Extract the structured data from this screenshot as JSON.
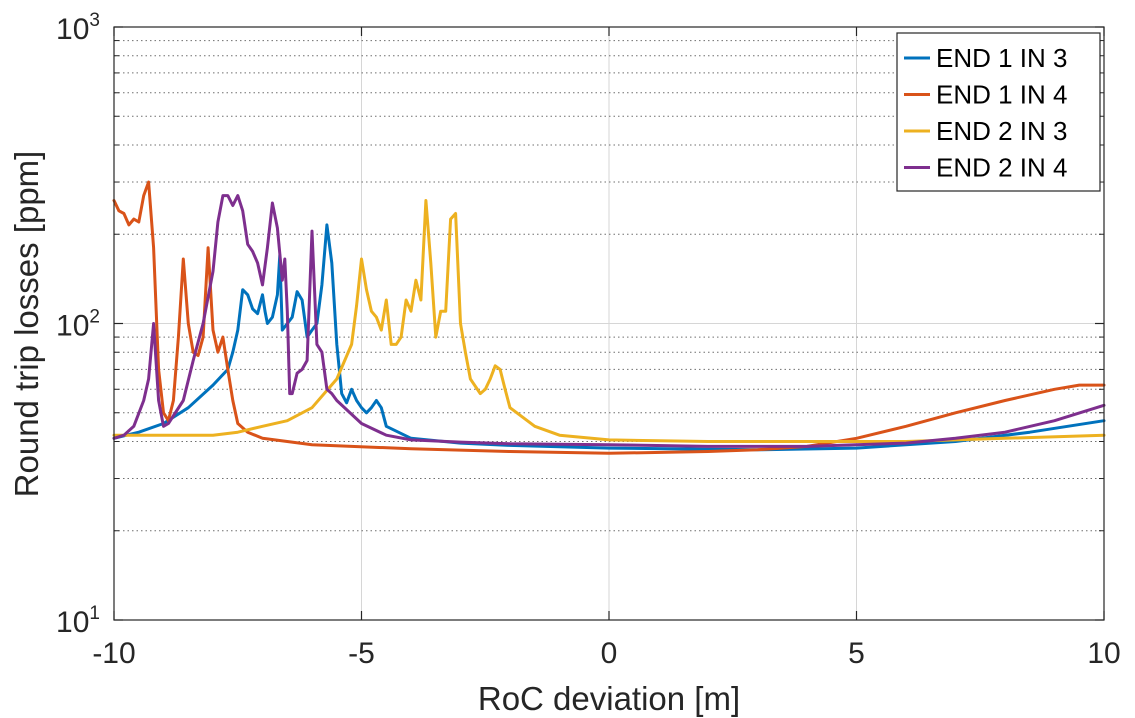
{
  "chart_data": {
    "type": "line",
    "title": "",
    "xlabel": "RoC deviation [m]",
    "ylabel": "Round trip losses [ppm]",
    "xlim": [
      -10,
      10
    ],
    "ylim": [
      10,
      1000
    ],
    "yscale": "log",
    "grid": true,
    "legend_position": "top-right",
    "x_ticks": [
      {
        "value": -10,
        "label": "-10"
      },
      {
        "value": -5,
        "label": "-5"
      },
      {
        "value": 0,
        "label": "0"
      },
      {
        "value": 5,
        "label": "5"
      },
      {
        "value": 10,
        "label": "10"
      }
    ],
    "y_ticks": [
      {
        "value": 10,
        "base": "10",
        "exp": "1"
      },
      {
        "value": 100,
        "base": "10",
        "exp": "2"
      },
      {
        "value": 1000,
        "base": "10",
        "exp": "3"
      }
    ],
    "series": [
      {
        "name": "END 1 IN 3",
        "color": "#0072BD",
        "points": [
          [
            -10,
            41
          ],
          [
            -9.5,
            43
          ],
          [
            -9,
            46
          ],
          [
            -8.5,
            52
          ],
          [
            -8,
            62
          ],
          [
            -7.7,
            70
          ],
          [
            -7.6,
            80
          ],
          [
            -7.5,
            95
          ],
          [
            -7.4,
            130
          ],
          [
            -7.3,
            125
          ],
          [
            -7.2,
            112
          ],
          [
            -7.1,
            108
          ],
          [
            -7.0,
            125
          ],
          [
            -6.95,
            110
          ],
          [
            -6.9,
            100
          ],
          [
            -6.8,
            105
          ],
          [
            -6.7,
            125
          ],
          [
            -6.65,
            170
          ],
          [
            -6.6,
            95
          ],
          [
            -6.5,
            100
          ],
          [
            -6.4,
            105
          ],
          [
            -6.3,
            128
          ],
          [
            -6.2,
            120
          ],
          [
            -6.1,
            90
          ],
          [
            -6.0,
            95
          ],
          [
            -5.9,
            100
          ],
          [
            -5.8,
            135
          ],
          [
            -5.7,
            215
          ],
          [
            -5.6,
            160
          ],
          [
            -5.5,
            85
          ],
          [
            -5.4,
            58
          ],
          [
            -5.3,
            54
          ],
          [
            -5.2,
            60
          ],
          [
            -5.1,
            55
          ],
          [
            -5.0,
            52
          ],
          [
            -4.9,
            50
          ],
          [
            -4.8,
            52
          ],
          [
            -4.7,
            55
          ],
          [
            -4.6,
            52
          ],
          [
            -4.5,
            45
          ],
          [
            -4.0,
            41
          ],
          [
            -3,
            39.5
          ],
          [
            -2,
            38.8
          ],
          [
            0,
            38
          ],
          [
            3,
            37.5
          ],
          [
            5,
            38
          ],
          [
            7,
            40
          ],
          [
            8.5,
            43
          ],
          [
            10,
            47
          ]
        ]
      },
      {
        "name": "END 1 IN 4",
        "color": "#D95319",
        "points": [
          [
            -10,
            260
          ],
          [
            -9.9,
            240
          ],
          [
            -9.8,
            235
          ],
          [
            -9.7,
            215
          ],
          [
            -9.6,
            225
          ],
          [
            -9.5,
            220
          ],
          [
            -9.4,
            270
          ],
          [
            -9.3,
            300
          ],
          [
            -9.2,
            180
          ],
          [
            -9.1,
            70
          ],
          [
            -9.0,
            50
          ],
          [
            -8.9,
            47
          ],
          [
            -8.8,
            55
          ],
          [
            -8.7,
            90
          ],
          [
            -8.6,
            165
          ],
          [
            -8.5,
            100
          ],
          [
            -8.4,
            80
          ],
          [
            -8.3,
            78
          ],
          [
            -8.2,
            90
          ],
          [
            -8.1,
            180
          ],
          [
            -8.0,
            95
          ],
          [
            -7.9,
            80
          ],
          [
            -7.8,
            90
          ],
          [
            -7.7,
            70
          ],
          [
            -7.6,
            55
          ],
          [
            -7.5,
            46
          ],
          [
            -7.3,
            43
          ],
          [
            -7.0,
            41
          ],
          [
            -6,
            39
          ],
          [
            -4,
            37.8
          ],
          [
            -2,
            37
          ],
          [
            0,
            36.5
          ],
          [
            2,
            37
          ],
          [
            3,
            37.5
          ],
          [
            4,
            38.5
          ],
          [
            5,
            41
          ],
          [
            6,
            45
          ],
          [
            7,
            50
          ],
          [
            8,
            55
          ],
          [
            9,
            60
          ],
          [
            9.5,
            62
          ],
          [
            10,
            62
          ]
        ]
      },
      {
        "name": "END 2 IN 3",
        "color": "#EDB120",
        "points": [
          [
            -10,
            42
          ],
          [
            -9,
            42
          ],
          [
            -8,
            42
          ],
          [
            -7.5,
            43
          ],
          [
            -7,
            45
          ],
          [
            -6.5,
            47
          ],
          [
            -6,
            52
          ],
          [
            -5.5,
            65
          ],
          [
            -5.2,
            85
          ],
          [
            -5.1,
            115
          ],
          [
            -5.0,
            165
          ],
          [
            -4.9,
            130
          ],
          [
            -4.8,
            110
          ],
          [
            -4.7,
            105
          ],
          [
            -4.6,
            95
          ],
          [
            -4.5,
            120
          ],
          [
            -4.4,
            85
          ],
          [
            -4.3,
            85
          ],
          [
            -4.2,
            90
          ],
          [
            -4.1,
            120
          ],
          [
            -4.0,
            110
          ],
          [
            -3.9,
            140
          ],
          [
            -3.8,
            120
          ],
          [
            -3.7,
            260
          ],
          [
            -3.6,
            160
          ],
          [
            -3.5,
            90
          ],
          [
            -3.4,
            110
          ],
          [
            -3.3,
            110
          ],
          [
            -3.2,
            225
          ],
          [
            -3.1,
            235
          ],
          [
            -3.0,
            100
          ],
          [
            -2.9,
            80
          ],
          [
            -2.8,
            65
          ],
          [
            -2.6,
            58
          ],
          [
            -2.5,
            60
          ],
          [
            -2.4,
            65
          ],
          [
            -2.3,
            72
          ],
          [
            -2.2,
            70
          ],
          [
            -2.1,
            60
          ],
          [
            -2.0,
            52
          ],
          [
            -1.5,
            45
          ],
          [
            -1,
            42
          ],
          [
            0,
            40.5
          ],
          [
            2,
            40
          ],
          [
            4,
            40
          ],
          [
            6,
            40
          ],
          [
            8,
            41
          ],
          [
            10,
            42
          ]
        ]
      },
      {
        "name": "END 2 IN 4",
        "color": "#7E2F8E",
        "points": [
          [
            -10,
            41
          ],
          [
            -9.8,
            42
          ],
          [
            -9.6,
            45
          ],
          [
            -9.4,
            55
          ],
          [
            -9.3,
            65
          ],
          [
            -9.2,
            100
          ],
          [
            -9.1,
            55
          ],
          [
            -9.0,
            45
          ],
          [
            -8.9,
            46
          ],
          [
            -8.6,
            55
          ],
          [
            -8.4,
            75
          ],
          [
            -8.2,
            100
          ],
          [
            -8.0,
            150
          ],
          [
            -7.9,
            220
          ],
          [
            -7.8,
            270
          ],
          [
            -7.7,
            270
          ],
          [
            -7.6,
            250
          ],
          [
            -7.5,
            270
          ],
          [
            -7.4,
            240
          ],
          [
            -7.3,
            185
          ],
          [
            -7.2,
            175
          ],
          [
            -7.1,
            160
          ],
          [
            -7.0,
            135
          ],
          [
            -6.9,
            180
          ],
          [
            -6.8,
            255
          ],
          [
            -6.7,
            210
          ],
          [
            -6.6,
            140
          ],
          [
            -6.55,
            165
          ],
          [
            -6.5,
            110
          ],
          [
            -6.45,
            58
          ],
          [
            -6.4,
            58
          ],
          [
            -6.3,
            68
          ],
          [
            -6.2,
            70
          ],
          [
            -6.1,
            75
          ],
          [
            -6.0,
            205
          ],
          [
            -5.9,
            85
          ],
          [
            -5.8,
            80
          ],
          [
            -5.7,
            60
          ],
          [
            -5.6,
            58
          ],
          [
            -5.5,
            55
          ],
          [
            -5.0,
            46
          ],
          [
            -4.5,
            42
          ],
          [
            -4,
            40.5
          ],
          [
            -3,
            39.8
          ],
          [
            -2,
            39.3
          ],
          [
            0,
            39
          ],
          [
            2,
            38.5
          ],
          [
            4,
            38.5
          ],
          [
            6,
            39.5
          ],
          [
            7,
            41
          ],
          [
            8,
            43
          ],
          [
            9,
            47
          ],
          [
            10,
            53
          ]
        ]
      }
    ]
  }
}
